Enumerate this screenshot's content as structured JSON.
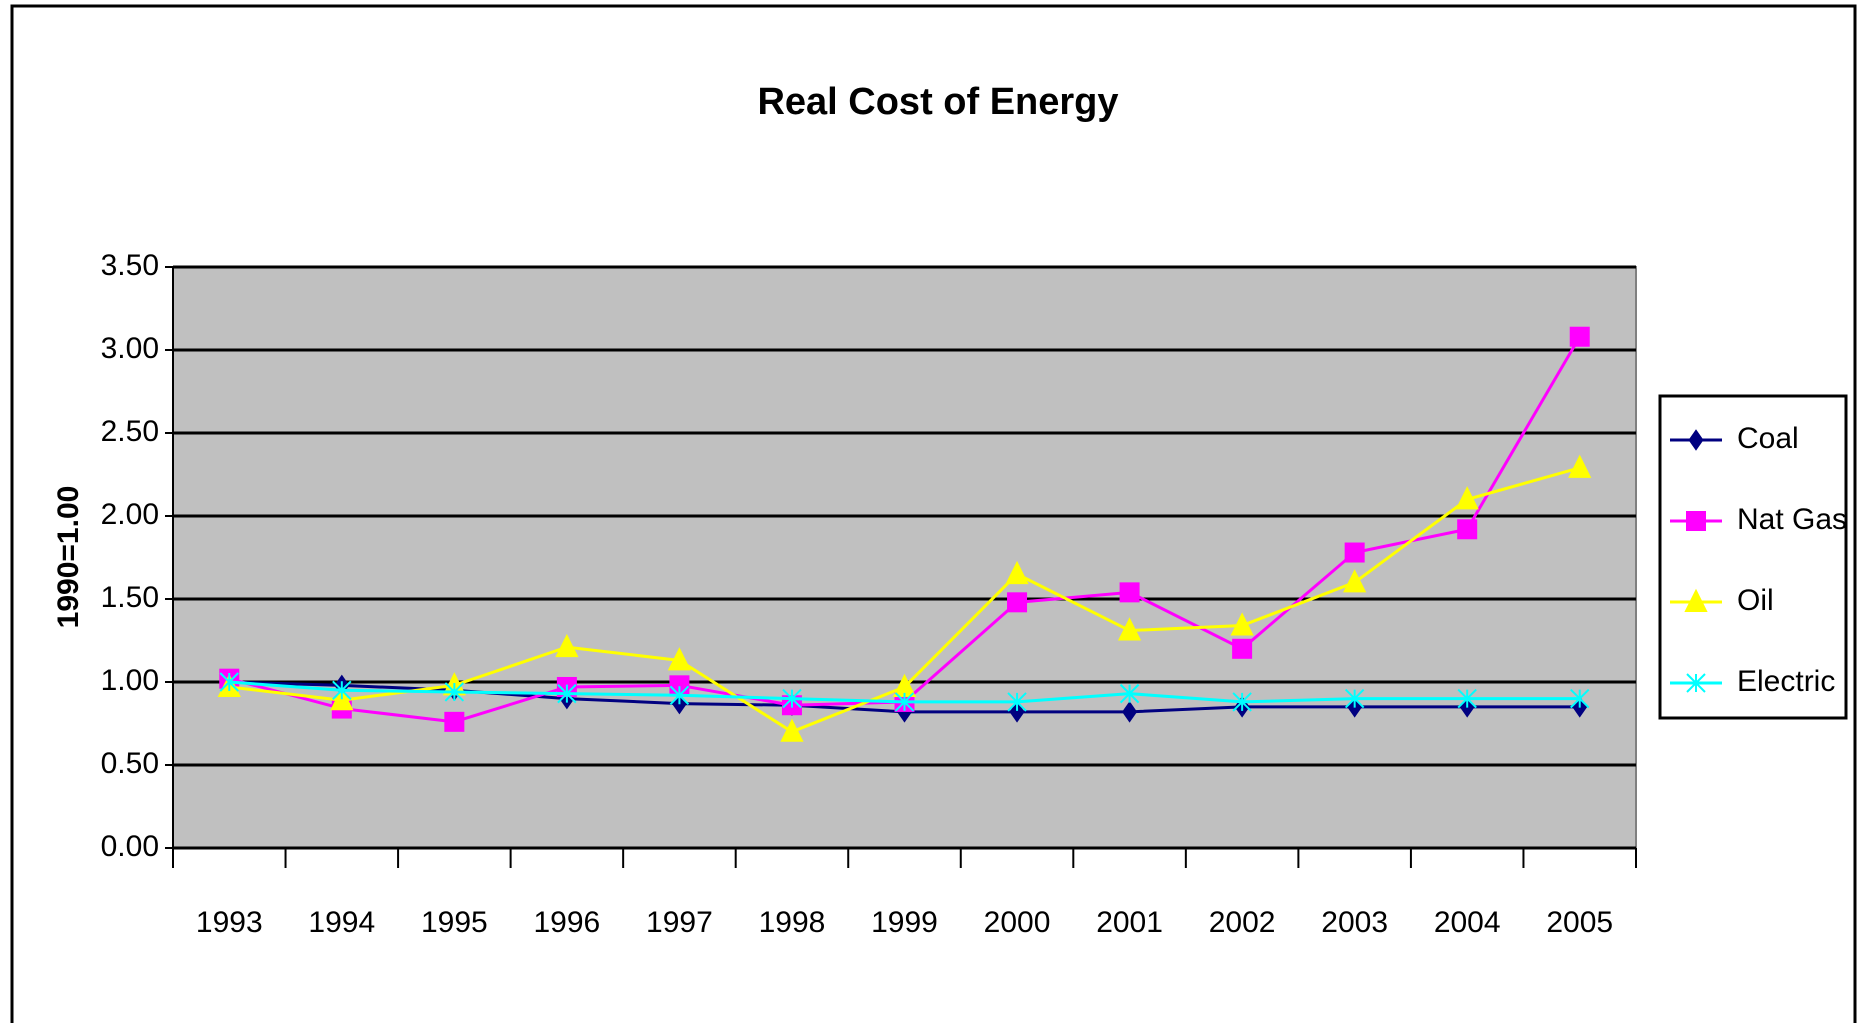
{
  "chart_data": {
    "type": "line",
    "title": "Real Cost of Energy",
    "y_label": "1990=1.00",
    "categories": [
      "1993",
      "1994",
      "1995",
      "1996",
      "1997",
      "1998",
      "1999",
      "2000",
      "2001",
      "2002",
      "2003",
      "2004",
      "2005"
    ],
    "series": [
      {
        "name": "Coal",
        "color": "#000080",
        "marker": "diamond",
        "values": [
          1.0,
          0.98,
          0.95,
          0.9,
          0.87,
          0.86,
          0.82,
          0.82,
          0.82,
          0.85,
          0.85,
          0.85,
          0.85
        ]
      },
      {
        "name": "Nat Gas",
        "color": "#ff00ff",
        "marker": "square",
        "values": [
          1.02,
          0.84,
          0.76,
          0.97,
          0.98,
          0.86,
          0.88,
          1.48,
          1.54,
          1.2,
          1.78,
          1.92,
          3.08
        ]
      },
      {
        "name": "Oil",
        "color": "#ffff00",
        "marker": "triangle",
        "values": [
          0.97,
          0.89,
          0.98,
          1.21,
          1.13,
          0.7,
          0.97,
          1.65,
          1.31,
          1.34,
          1.6,
          2.1,
          2.29
        ]
      },
      {
        "name": "Electric",
        "color": "#00ffff",
        "marker": "asterisk",
        "values": [
          1.0,
          0.95,
          0.94,
          0.93,
          0.92,
          0.9,
          0.88,
          0.88,
          0.93,
          0.88,
          0.9,
          0.9,
          0.9
        ]
      }
    ],
    "ylim": [
      0,
      3.5
    ],
    "yticks": [
      {
        "value": 0,
        "label": "0.00"
      },
      {
        "value": 0.5,
        "label": "0.50"
      },
      {
        "value": 1,
        "label": "1.00"
      },
      {
        "value": 1.5,
        "label": "1.50"
      },
      {
        "value": 2,
        "label": "2.00"
      },
      {
        "value": 2.5,
        "label": "2.50"
      },
      {
        "value": 3,
        "label": "3.00"
      },
      {
        "value": 3.5,
        "label": "3.50"
      }
    ],
    "grid": true,
    "legend": "right",
    "plot_background": "#c0c0c0"
  }
}
